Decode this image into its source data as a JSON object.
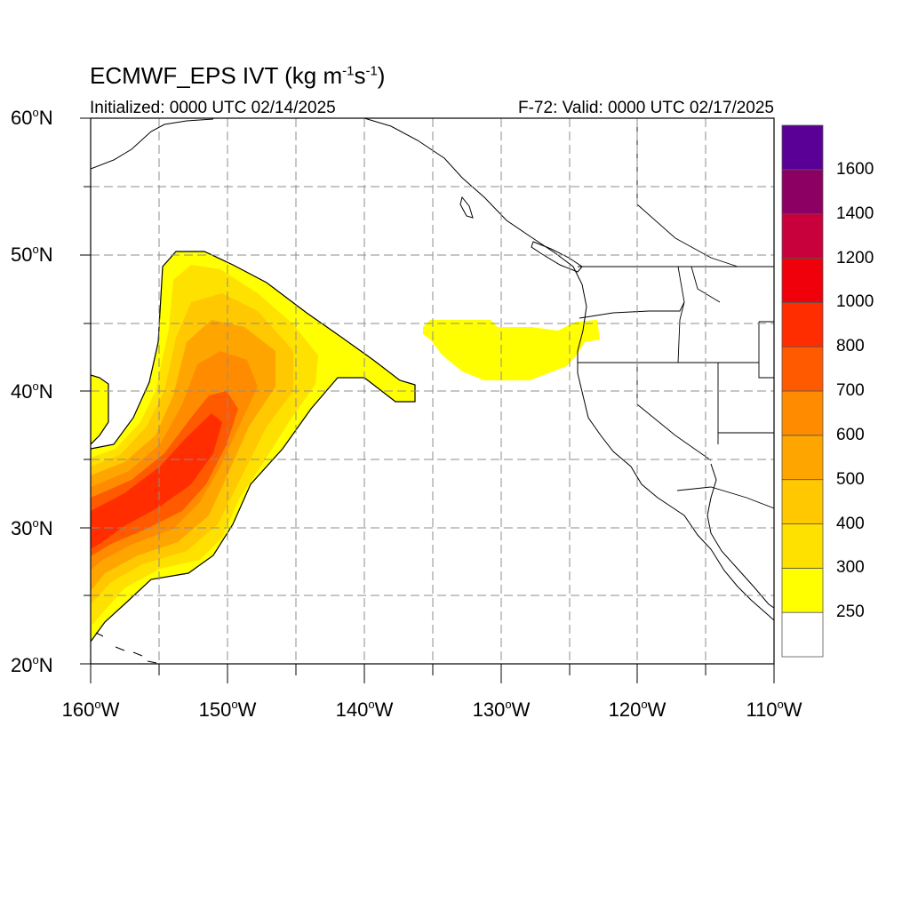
{
  "title": {
    "main": "ECMWF_EPS IVT (kg m",
    "exp1": "-1",
    "mid": "s",
    "exp2": "-1",
    "end": ")"
  },
  "subtitle_left": "Initialized: 0000 UTC 02/14/2025",
  "subtitle_right": "F-72: Valid: 0000 UTC 02/17/2025",
  "lat_labels": [
    {
      "value": "60",
      "hemi": "N"
    },
    {
      "value": "50",
      "hemi": "N"
    },
    {
      "value": "40",
      "hemi": "N"
    },
    {
      "value": "30",
      "hemi": "N"
    },
    {
      "value": "20",
      "hemi": "N"
    }
  ],
  "lon_labels": [
    {
      "value": "160",
      "hemi": "W"
    },
    {
      "value": "150",
      "hemi": "W"
    },
    {
      "value": "140",
      "hemi": "W"
    },
    {
      "value": "130",
      "hemi": "W"
    },
    {
      "value": "120",
      "hemi": "W"
    },
    {
      "value": "110",
      "hemi": "W"
    }
  ],
  "colorbar": {
    "labels": [
      "250",
      "300",
      "400",
      "500",
      "600",
      "700",
      "800",
      "1000",
      "1200",
      "1400",
      "1600"
    ],
    "colors": [
      "#ffffff",
      "#ffff00",
      "#ffe100",
      "#ffc800",
      "#ffa500",
      "#ff8c00",
      "#ff5a00",
      "#ff2d00",
      "#f0000a",
      "#c8003c",
      "#8c0064",
      "#5a0096"
    ]
  },
  "map": {
    "lon_range": [
      -160,
      -110
    ],
    "lat_range": [
      20,
      60
    ],
    "grid_interval_deg": 5,
    "grid_style": "dashed"
  }
}
